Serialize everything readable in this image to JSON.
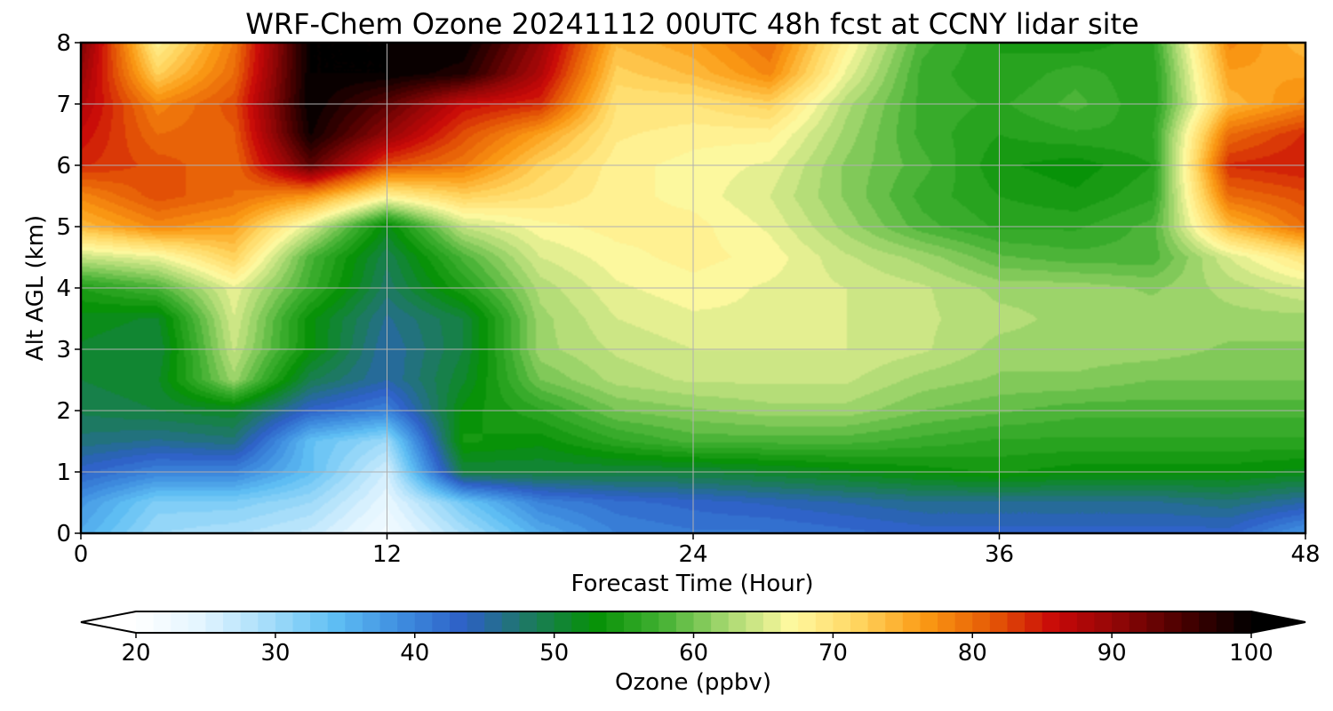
{
  "chart_data": {
    "type": "heatmap",
    "title": "WRF-Chem Ozone  20241112 00UTC 48h fcst at CCNY lidar site",
    "xlabel": "Forecast Time (Hour)",
    "ylabel": "Alt AGL (km)",
    "xlim": [
      0,
      48
    ],
    "ylim": [
      0,
      8
    ],
    "xticks": [
      0,
      12,
      24,
      36,
      48
    ],
    "yticks": [
      0,
      1,
      2,
      3,
      4,
      5,
      6,
      7,
      8
    ],
    "grid": true,
    "x": [
      0,
      3,
      6,
      9,
      12,
      15,
      18,
      21,
      24,
      27,
      30,
      33,
      36,
      39,
      42,
      45,
      48
    ],
    "y": [
      0,
      0.5,
      1,
      1.5,
      2,
      2.5,
      3,
      3.5,
      4,
      4.5,
      5,
      5.5,
      6,
      6.5,
      7,
      7.5,
      8
    ],
    "values": [
      [
        36,
        30,
        29,
        27,
        22,
        29,
        36,
        40,
        41,
        41,
        42,
        43,
        43,
        43,
        43,
        43,
        38
      ],
      [
        38,
        32,
        32,
        30,
        24,
        33,
        40,
        42,
        43,
        44,
        45,
        46,
        46,
        46,
        46,
        47,
        45
      ],
      [
        43,
        40,
        40,
        34,
        26,
        50,
        50,
        50,
        50,
        51,
        52,
        53,
        54,
        53,
        53,
        53,
        52
      ],
      [
        47,
        46,
        47,
        34,
        30,
        54,
        53,
        56,
        58,
        58,
        58,
        57,
        56,
        56,
        56,
        56,
        56
      ],
      [
        49,
        50,
        51,
        43,
        40,
        53,
        56,
        60,
        61,
        62,
        62,
        60,
        59,
        58,
        58,
        58,
        58
      ],
      [
        50,
        51,
        62,
        49,
        45,
        51,
        60,
        63,
        64,
        64,
        64,
        62,
        61,
        61,
        60,
        60,
        60
      ],
      [
        51,
        50,
        64,
        53,
        45,
        50,
        62,
        64,
        65,
        65,
        65,
        64,
        62,
        62,
        62,
        61,
        61
      ],
      [
        52,
        51,
        65,
        53,
        46,
        50,
        62,
        65,
        66,
        66,
        65,
        64,
        63,
        62,
        62,
        62,
        62
      ],
      [
        55,
        58,
        66,
        57,
        48,
        55,
        63,
        66,
        67,
        66,
        65,
        64,
        62,
        62,
        61,
        63,
        65
      ],
      [
        64,
        66,
        72,
        58,
        49,
        58,
        65,
        67,
        68,
        67,
        64,
        62,
        59,
        58,
        58,
        65,
        70
      ],
      [
        74,
        78,
        76,
        65,
        52,
        64,
        67,
        68,
        68,
        66,
        62,
        58,
        56,
        56,
        58,
        74,
        80
      ],
      [
        78,
        82,
        80,
        77,
        68,
        72,
        70,
        68,
        67,
        65,
        61,
        57,
        55,
        54,
        56,
        80,
        82
      ],
      [
        84,
        82,
        80,
        94,
        82,
        79,
        72,
        68,
        67,
        66,
        61,
        58,
        54,
        53,
        55,
        84,
        85
      ],
      [
        86,
        80,
        81,
        99,
        90,
        82,
        76,
        69,
        68,
        68,
        62,
        57,
        55,
        56,
        56,
        80,
        84
      ],
      [
        88,
        78,
        82,
        100,
        94,
        86,
        84,
        70,
        70,
        72,
        63,
        57,
        56,
        58,
        55,
        74,
        78
      ],
      [
        90,
        72,
        80,
        100,
        100,
        98,
        88,
        72,
        74,
        78,
        66,
        57,
        55,
        57,
        55,
        76,
        76
      ],
      [
        92,
        68,
        79,
        100,
        100,
        100,
        90,
        74,
        76,
        80,
        68,
        58,
        55,
        54,
        56,
        78,
        74
      ]
    ],
    "colorbar": {
      "label": "Ozone  (ppbv)",
      "min": 20,
      "max": 100,
      "ticks": [
        20,
        30,
        40,
        50,
        60,
        70,
        80,
        90,
        100
      ],
      "extend": "both",
      "colors": [
        "#ffffff",
        "#e3f5ff",
        "#a6ddfa",
        "#60c0f4",
        "#3f8fe0",
        "#2d5fc6",
        "#1d7a60",
        "#069106",
        "#42b032",
        "#a6d870",
        "#fff9a0",
        "#ffd560",
        "#fb9b14",
        "#e65c06",
        "#c80808",
        "#8e0606",
        "#460000",
        "#000000"
      ]
    }
  }
}
